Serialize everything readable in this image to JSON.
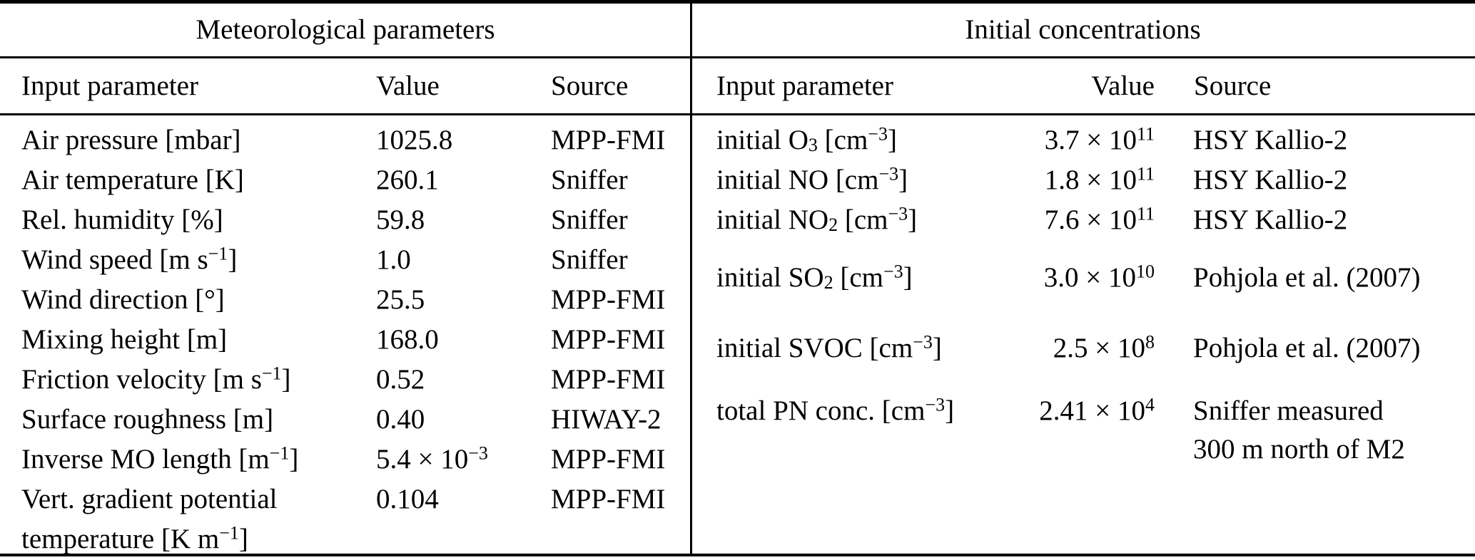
{
  "colors": {
    "background": "#ffffff",
    "text": "#000000",
    "rule": "#000000"
  },
  "table": {
    "left": {
      "title": "Meteorological parameters",
      "headers": {
        "param": "Input parameter",
        "value": "Value",
        "source": "Source"
      },
      "rows": [
        {
          "param": [
            {
              "t": "Air pressure [mbar]"
            }
          ],
          "value": [
            {
              "t": "1025.8"
            }
          ],
          "source": "MPP-FMI"
        },
        {
          "param": [
            {
              "t": "Air temperature [K]"
            }
          ],
          "value": [
            {
              "t": "260.1"
            }
          ],
          "source": "Sniffer"
        },
        {
          "param": [
            {
              "t": "Rel. humidity [%]"
            }
          ],
          "value": [
            {
              "t": "59.8"
            }
          ],
          "source": "Sniffer"
        },
        {
          "param": [
            {
              "t": "Wind speed [m s"
            },
            {
              "sup": "−1"
            },
            {
              "t": "]"
            }
          ],
          "value": [
            {
              "t": "1.0"
            }
          ],
          "source": "Sniffer"
        },
        {
          "param": [
            {
              "t": "Wind direction [°]"
            }
          ],
          "value": [
            {
              "t": "25.5"
            }
          ],
          "source": "MPP-FMI"
        },
        {
          "param": [
            {
              "t": "Mixing height [m]"
            }
          ],
          "value": [
            {
              "t": "168.0"
            }
          ],
          "source": "MPP-FMI"
        },
        {
          "param": [
            {
              "t": "Friction velocity [m s"
            },
            {
              "sup": "−1"
            },
            {
              "t": "]"
            }
          ],
          "value": [
            {
              "t": "0.52"
            }
          ],
          "source": "MPP-FMI"
        },
        {
          "param": [
            {
              "t": "Surface roughness [m]"
            }
          ],
          "value": [
            {
              "t": "0.40"
            }
          ],
          "source": "HIWAY-2"
        },
        {
          "param": [
            {
              "t": "Inverse MO length [m"
            },
            {
              "sup": "−1"
            },
            {
              "t": "]"
            }
          ],
          "value": [
            {
              "t": "5.4 × 10"
            },
            {
              "sup": "−3"
            }
          ],
          "source": "MPP-FMI"
        },
        {
          "param": [
            {
              "t": "Vert. gradient potential"
            },
            {
              "br": true
            },
            {
              "t": "temperature [K m"
            },
            {
              "sup": "−1"
            },
            {
              "t": "]"
            }
          ],
          "value": [
            {
              "t": "0.104"
            }
          ],
          "source": "MPP-FMI"
        }
      ]
    },
    "right": {
      "title": "Initial concentrations",
      "headers": {
        "param": "Input parameter",
        "value": "Value",
        "source": "Source"
      },
      "rows": [
        {
          "param": [
            {
              "t": "initial O"
            },
            {
              "sub": "3"
            },
            {
              "t": " [cm"
            },
            {
              "sup": "−3"
            },
            {
              "t": "]"
            }
          ],
          "value": [
            {
              "t": "3.7 × 10"
            },
            {
              "sup": "11"
            }
          ],
          "source": [
            {
              "t": "HSY Kallio-2"
            }
          ]
        },
        {
          "param": [
            {
              "t": "initial NO [cm"
            },
            {
              "sup": "−3"
            },
            {
              "t": "]"
            }
          ],
          "value": [
            {
              "t": "1.8 × 10"
            },
            {
              "sup": "11"
            }
          ],
          "source": [
            {
              "t": "HSY Kallio-2"
            }
          ]
        },
        {
          "param": [
            {
              "t": "initial NO"
            },
            {
              "sub": "2"
            },
            {
              "t": " [cm"
            },
            {
              "sup": "−3"
            },
            {
              "t": "]"
            }
          ],
          "value": [
            {
              "t": "7.6 × 10"
            },
            {
              "sup": "11"
            }
          ],
          "source": [
            {
              "t": "HSY Kallio-2"
            }
          ]
        },
        {
          "param": [
            {
              "t": "initial SO"
            },
            {
              "sub": "2"
            },
            {
              "t": " [cm"
            },
            {
              "sup": "−3"
            },
            {
              "t": "]"
            }
          ],
          "value": [
            {
              "t": "3.0 × 10"
            },
            {
              "sup": "10"
            }
          ],
          "source": [
            {
              "t": " Pohjola et al. (2007)"
            }
          ]
        },
        {
          "param": [
            {
              "t": "initial SVOC [cm"
            },
            {
              "sup": "−3"
            },
            {
              "t": "]"
            }
          ],
          "value": [
            {
              "t": "2.5 × 10"
            },
            {
              "sup": "8"
            }
          ],
          "source": [
            {
              "t": " Pohjola et al. (2007)"
            }
          ]
        },
        {
          "param": [
            {
              "t": "total PN conc. [cm"
            },
            {
              "sup": "−3"
            },
            {
              "t": "]"
            }
          ],
          "value": [
            {
              "t": "2.41 × 10"
            },
            {
              "sup": "4"
            }
          ],
          "source": [
            {
              "t": "Sniffer measured"
            },
            {
              "br": true
            },
            {
              "t": "300 m north of M2"
            }
          ]
        }
      ]
    }
  }
}
